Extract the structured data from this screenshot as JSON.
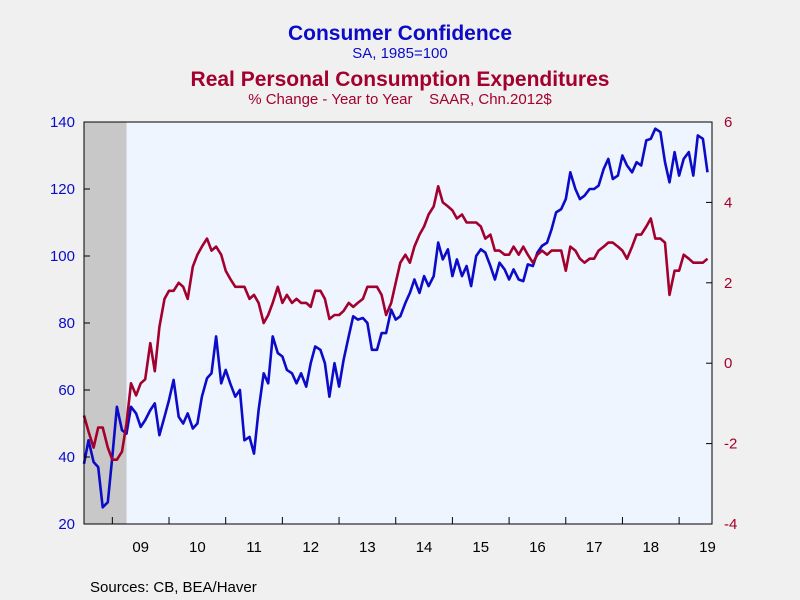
{
  "titles": {
    "primary": "Consumer Confidence",
    "primary_sub": "SA, 1985=100",
    "secondary": "Real Personal Consumption Expenditures",
    "secondary_sub": "% Change - Year to Year    SAAR, Chn.2012$"
  },
  "footer": {
    "sources": "Sources:  CB, BEA/Haver"
  },
  "colors": {
    "background": "#f0f0f0",
    "plot_background": "#eef5ff",
    "recession": "#c8c8c8",
    "series_confidence": "#0b0bc8",
    "series_pce": "#a3002d"
  },
  "chart_data": {
    "type": "line",
    "x_range": [
      2008.5,
      2019.58
    ],
    "x_ticks": [
      {
        "label": "09",
        "value": 2009.5
      },
      {
        "label": "10",
        "value": 2010.5
      },
      {
        "label": "11",
        "value": 2011.5
      },
      {
        "label": "12",
        "value": 2012.5
      },
      {
        "label": "13",
        "value": 2013.5
      },
      {
        "label": "14",
        "value": 2014.5
      },
      {
        "label": "15",
        "value": 2015.5
      },
      {
        "label": "16",
        "value": 2016.5
      },
      {
        "label": "17",
        "value": 2017.5
      },
      {
        "label": "18",
        "value": 2018.5
      },
      {
        "label": "19",
        "value": 2019.5
      }
    ],
    "y_left": {
      "range": [
        20,
        140
      ],
      "ticks": [
        20,
        40,
        60,
        80,
        100,
        120,
        140
      ]
    },
    "y_right": {
      "range": [
        -4,
        6
      ],
      "ticks": [
        -4,
        -2,
        0,
        2,
        4,
        6
      ]
    },
    "recession_shading": [
      2008.5,
      2009.25
    ],
    "grid": false,
    "series": [
      {
        "name": "Consumer Confidence",
        "axis": "left",
        "points": [
          [
            2008.5,
            38.0
          ],
          [
            2008.58,
            45.0
          ],
          [
            2008.67,
            38.5
          ],
          [
            2008.75,
            37.0
          ],
          [
            2008.83,
            25.0
          ],
          [
            2008.92,
            26.5
          ],
          [
            2009.0,
            40.0
          ],
          [
            2009.08,
            55.0
          ],
          [
            2009.17,
            48.0
          ],
          [
            2009.25,
            47.0
          ],
          [
            2009.33,
            55.0
          ],
          [
            2009.42,
            53.0
          ],
          [
            2009.5,
            49.0
          ],
          [
            2009.58,
            51.0
          ],
          [
            2009.67,
            54.0
          ],
          [
            2009.75,
            56.0
          ],
          [
            2009.83,
            46.5
          ],
          [
            2009.92,
            52.0
          ],
          [
            2010.0,
            57.0
          ],
          [
            2010.08,
            63.0
          ],
          [
            2010.17,
            52.0
          ],
          [
            2010.25,
            50.0
          ],
          [
            2010.33,
            53.0
          ],
          [
            2010.42,
            48.5
          ],
          [
            2010.5,
            50.0
          ],
          [
            2010.58,
            58.0
          ],
          [
            2010.67,
            63.5
          ],
          [
            2010.75,
            65.0
          ],
          [
            2010.83,
            76.0
          ],
          [
            2010.92,
            62.0
          ],
          [
            2011.0,
            66.0
          ],
          [
            2011.08,
            62.0
          ],
          [
            2011.17,
            58.0
          ],
          [
            2011.25,
            60.0
          ],
          [
            2011.33,
            45.0
          ],
          [
            2011.42,
            46.0
          ],
          [
            2011.5,
            41.0
          ],
          [
            2011.58,
            54.0
          ],
          [
            2011.67,
            65.0
          ],
          [
            2011.75,
            62.0
          ],
          [
            2011.83,
            76.0
          ],
          [
            2011.92,
            71.0
          ],
          [
            2012.0,
            70.0
          ],
          [
            2012.08,
            66.0
          ],
          [
            2012.17,
            65.0
          ],
          [
            2012.25,
            62.0
          ],
          [
            2012.33,
            65.0
          ],
          [
            2012.42,
            61.0
          ],
          [
            2012.5,
            68.0
          ],
          [
            2012.58,
            73.0
          ],
          [
            2012.67,
            72.0
          ],
          [
            2012.75,
            68.0
          ],
          [
            2012.83,
            58.0
          ],
          [
            2012.92,
            68.0
          ],
          [
            2013.0,
            61.0
          ],
          [
            2013.08,
            69.0
          ],
          [
            2013.17,
            76.0
          ],
          [
            2013.25,
            82.0
          ],
          [
            2013.33,
            81.0
          ],
          [
            2013.42,
            81.5
          ],
          [
            2013.5,
            80.0
          ],
          [
            2013.58,
            72.0
          ],
          [
            2013.67,
            72.0
          ],
          [
            2013.75,
            77.0
          ],
          [
            2013.83,
            77.0
          ],
          [
            2013.92,
            84.0
          ],
          [
            2014.0,
            81.0
          ],
          [
            2014.08,
            82.0
          ],
          [
            2014.17,
            86.0
          ],
          [
            2014.25,
            89.0
          ],
          [
            2014.33,
            93.0
          ],
          [
            2014.42,
            89.0
          ],
          [
            2014.5,
            94.0
          ],
          [
            2014.58,
            91.0
          ],
          [
            2014.67,
            94.0
          ],
          [
            2014.75,
            104.0
          ],
          [
            2014.83,
            99.0
          ],
          [
            2014.92,
            102.0
          ],
          [
            2015.0,
            94.0
          ],
          [
            2015.08,
            99.0
          ],
          [
            2015.17,
            94.0
          ],
          [
            2015.25,
            97.0
          ],
          [
            2015.33,
            91.0
          ],
          [
            2015.42,
            100.0
          ],
          [
            2015.5,
            102.0
          ],
          [
            2015.58,
            101.0
          ],
          [
            2015.67,
            97.0
          ],
          [
            2015.75,
            93.0
          ],
          [
            2015.83,
            98.0
          ],
          [
            2015.92,
            96.0
          ],
          [
            2016.0,
            93.0
          ],
          [
            2016.08,
            96.0
          ],
          [
            2016.17,
            93.0
          ],
          [
            2016.25,
            92.5
          ],
          [
            2016.33,
            97.5
          ],
          [
            2016.42,
            97.0
          ],
          [
            2016.5,
            101.0
          ],
          [
            2016.58,
            103.0
          ],
          [
            2016.67,
            104.0
          ],
          [
            2016.75,
            108.0
          ],
          [
            2016.83,
            113.0
          ],
          [
            2016.92,
            114.0
          ],
          [
            2017.0,
            117.0
          ],
          [
            2017.08,
            125.0
          ],
          [
            2017.17,
            120.0
          ],
          [
            2017.25,
            117.0
          ],
          [
            2017.33,
            118.0
          ],
          [
            2017.42,
            120.0
          ],
          [
            2017.5,
            120.0
          ],
          [
            2017.58,
            121.0
          ],
          [
            2017.67,
            126.0
          ],
          [
            2017.75,
            129.0
          ],
          [
            2017.83,
            123.0
          ],
          [
            2017.92,
            124.0
          ],
          [
            2018.0,
            130.0
          ],
          [
            2018.08,
            127.0
          ],
          [
            2018.17,
            125.0
          ],
          [
            2018.25,
            128.0
          ],
          [
            2018.33,
            127.0
          ],
          [
            2018.42,
            134.5
          ],
          [
            2018.5,
            135.0
          ],
          [
            2018.58,
            138.0
          ],
          [
            2018.67,
            137.0
          ],
          [
            2018.75,
            128.0
          ],
          [
            2018.83,
            122.0
          ],
          [
            2018.92,
            131.0
          ],
          [
            2019.0,
            124.0
          ],
          [
            2019.08,
            129.0
          ],
          [
            2019.17,
            131.0
          ],
          [
            2019.25,
            124.0
          ],
          [
            2019.33,
            136.0
          ],
          [
            2019.42,
            135.0
          ],
          [
            2019.5,
            125.0
          ]
        ]
      },
      {
        "name": "Real Personal Consumption Expenditures",
        "axis": "right",
        "points": [
          [
            2008.5,
            -1.3
          ],
          [
            2008.58,
            -1.7
          ],
          [
            2008.67,
            -2.1
          ],
          [
            2008.75,
            -1.6
          ],
          [
            2008.83,
            -1.6
          ],
          [
            2008.92,
            -2.1
          ],
          [
            2009.0,
            -2.4
          ],
          [
            2009.08,
            -2.4
          ],
          [
            2009.17,
            -2.2
          ],
          [
            2009.25,
            -1.5
          ],
          [
            2009.33,
            -0.5
          ],
          [
            2009.42,
            -0.8
          ],
          [
            2009.5,
            -0.5
          ],
          [
            2009.58,
            -0.4
          ],
          [
            2009.67,
            0.5
          ],
          [
            2009.75,
            -0.2
          ],
          [
            2009.83,
            0.9
          ],
          [
            2009.92,
            1.6
          ],
          [
            2010.0,
            1.8
          ],
          [
            2010.08,
            1.8
          ],
          [
            2010.17,
            2.0
          ],
          [
            2010.25,
            1.9
          ],
          [
            2010.33,
            1.6
          ],
          [
            2010.42,
            2.4
          ],
          [
            2010.5,
            2.7
          ],
          [
            2010.58,
            2.9
          ],
          [
            2010.67,
            3.1
          ],
          [
            2010.75,
            2.8
          ],
          [
            2010.83,
            2.9
          ],
          [
            2010.92,
            2.7
          ],
          [
            2011.0,
            2.3
          ],
          [
            2011.08,
            2.1
          ],
          [
            2011.17,
            1.9
          ],
          [
            2011.25,
            1.9
          ],
          [
            2011.33,
            1.9
          ],
          [
            2011.42,
            1.6
          ],
          [
            2011.5,
            1.7
          ],
          [
            2011.58,
            1.5
          ],
          [
            2011.67,
            1.0
          ],
          [
            2011.75,
            1.2
          ],
          [
            2011.83,
            1.5
          ],
          [
            2011.92,
            1.9
          ],
          [
            2012.0,
            1.5
          ],
          [
            2012.08,
            1.7
          ],
          [
            2012.17,
            1.5
          ],
          [
            2012.25,
            1.6
          ],
          [
            2012.33,
            1.5
          ],
          [
            2012.42,
            1.5
          ],
          [
            2012.5,
            1.4
          ],
          [
            2012.58,
            1.8
          ],
          [
            2012.67,
            1.8
          ],
          [
            2012.75,
            1.6
          ],
          [
            2012.83,
            1.1
          ],
          [
            2012.92,
            1.2
          ],
          [
            2013.0,
            1.2
          ],
          [
            2013.08,
            1.3
          ],
          [
            2013.17,
            1.5
          ],
          [
            2013.25,
            1.4
          ],
          [
            2013.33,
            1.5
          ],
          [
            2013.42,
            1.6
          ],
          [
            2013.5,
            1.9
          ],
          [
            2013.58,
            1.9
          ],
          [
            2013.67,
            1.9
          ],
          [
            2013.75,
            1.7
          ],
          [
            2013.83,
            1.2
          ],
          [
            2013.92,
            1.5
          ],
          [
            2014.0,
            2.0
          ],
          [
            2014.08,
            2.5
          ],
          [
            2014.17,
            2.7
          ],
          [
            2014.25,
            2.5
          ],
          [
            2014.33,
            2.9
          ],
          [
            2014.42,
            3.2
          ],
          [
            2014.5,
            3.4
          ],
          [
            2014.58,
            3.7
          ],
          [
            2014.67,
            3.9
          ],
          [
            2014.75,
            4.4
          ],
          [
            2014.83,
            4.0
          ],
          [
            2014.92,
            3.9
          ],
          [
            2015.0,
            3.8
          ],
          [
            2015.08,
            3.6
          ],
          [
            2015.17,
            3.7
          ],
          [
            2015.25,
            3.5
          ],
          [
            2015.33,
            3.5
          ],
          [
            2015.42,
            3.5
          ],
          [
            2015.5,
            3.4
          ],
          [
            2015.58,
            3.1
          ],
          [
            2015.67,
            3.2
          ],
          [
            2015.75,
            2.8
          ],
          [
            2015.83,
            2.8
          ],
          [
            2015.92,
            2.7
          ],
          [
            2016.0,
            2.7
          ],
          [
            2016.08,
            2.9
          ],
          [
            2016.17,
            2.7
          ],
          [
            2016.25,
            2.9
          ],
          [
            2016.33,
            2.7
          ],
          [
            2016.42,
            2.5
          ],
          [
            2016.5,
            2.7
          ],
          [
            2016.58,
            2.8
          ],
          [
            2016.67,
            2.7
          ],
          [
            2016.75,
            2.8
          ],
          [
            2016.83,
            2.8
          ],
          [
            2016.92,
            2.8
          ],
          [
            2017.0,
            2.3
          ],
          [
            2017.08,
            2.9
          ],
          [
            2017.17,
            2.8
          ],
          [
            2017.25,
            2.6
          ],
          [
            2017.33,
            2.5
          ],
          [
            2017.42,
            2.6
          ],
          [
            2017.5,
            2.6
          ],
          [
            2017.58,
            2.8
          ],
          [
            2017.67,
            2.9
          ],
          [
            2017.75,
            3.0
          ],
          [
            2017.83,
            3.0
          ],
          [
            2017.92,
            2.9
          ],
          [
            2018.0,
            2.8
          ],
          [
            2018.08,
            2.6
          ],
          [
            2018.17,
            2.9
          ],
          [
            2018.25,
            3.2
          ],
          [
            2018.33,
            3.2
          ],
          [
            2018.42,
            3.4
          ],
          [
            2018.5,
            3.6
          ],
          [
            2018.58,
            3.1
          ],
          [
            2018.67,
            3.1
          ],
          [
            2018.75,
            3.0
          ],
          [
            2018.83,
            1.7
          ],
          [
            2018.92,
            2.3
          ],
          [
            2019.0,
            2.3
          ],
          [
            2019.08,
            2.7
          ],
          [
            2019.17,
            2.6
          ],
          [
            2019.25,
            2.5
          ],
          [
            2019.33,
            2.5
          ],
          [
            2019.42,
            2.5
          ],
          [
            2019.5,
            2.6
          ]
        ]
      }
    ]
  }
}
